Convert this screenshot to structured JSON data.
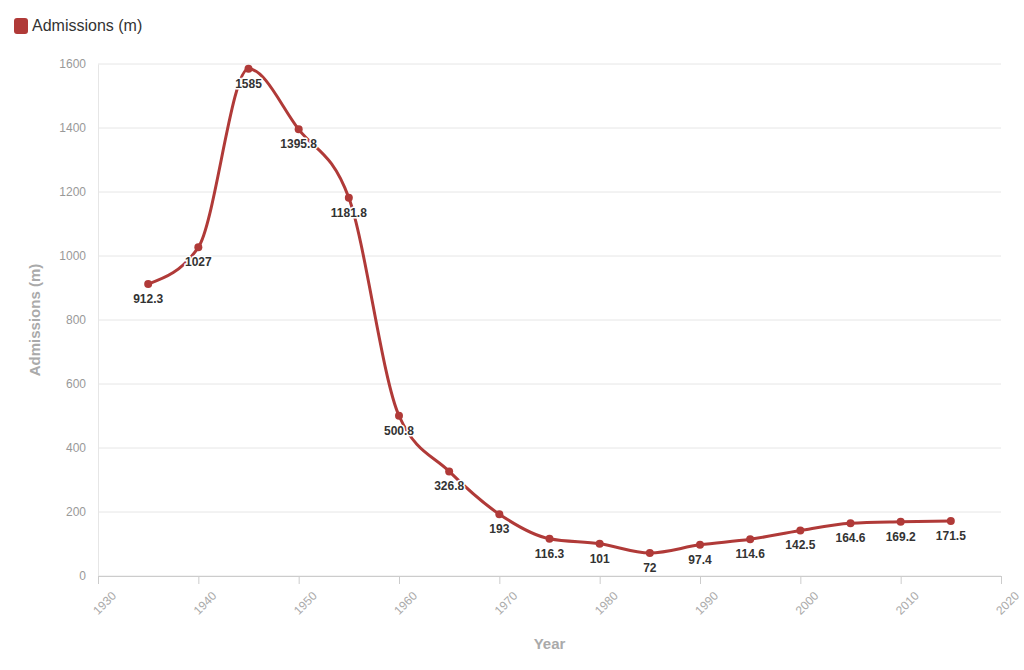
{
  "chart_data": {
    "type": "line",
    "x_label": "Year",
    "y_label": "Admissions (m)",
    "x": [
      1935,
      1940,
      1945,
      1950,
      1955,
      1960,
      1965,
      1970,
      1975,
      1980,
      1985,
      1990,
      1995,
      2000,
      2005,
      2010,
      2015
    ],
    "series": [
      {
        "name": "Admissions (m)",
        "color": "#b03a38",
        "marker": "circle",
        "line_style": "solid",
        "values": [
          912.3,
          1027,
          1585,
          1395.8,
          1181.8,
          500.8,
          326.8,
          193,
          116.3,
          101,
          72,
          97.4,
          114.6,
          142.5,
          164.6,
          169.2,
          171.5
        ]
      }
    ],
    "xlim": [
      1930,
      2020
    ],
    "xticks": [
      1930,
      1940,
      1950,
      1960,
      1970,
      1980,
      1990,
      2000,
      2010,
      2020
    ],
    "ylim": [
      0,
      1600
    ],
    "yticks": [
      0,
      200,
      400,
      600,
      800,
      1000,
      1200,
      1400,
      1600
    ],
    "grid": true,
    "legend": "top-left",
    "data_labels": true
  }
}
